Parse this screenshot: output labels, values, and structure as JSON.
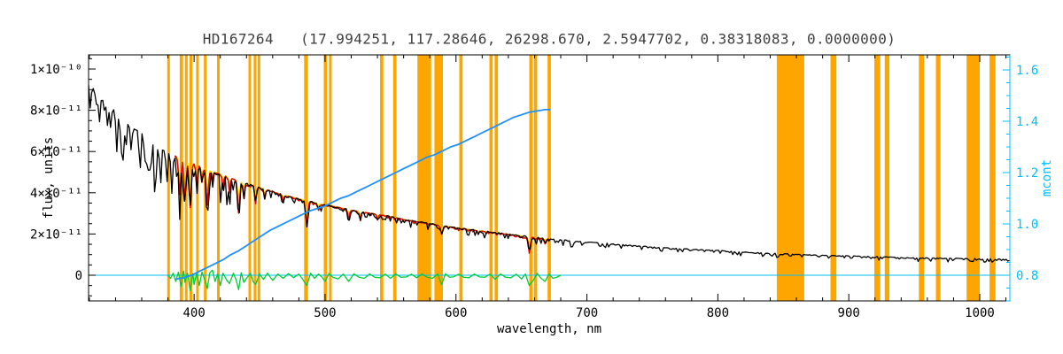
{
  "title": "HD167264   (17.994251, 117.28646, 26298.670, 2.5947702, 0.38318083, 0.0000000)",
  "chart_data": {
    "type": "line",
    "title": "HD167264   (17.994251, 117.28646, 26298.670, 2.5947702, 0.38318083, 0.0000000)",
    "xlabel": "wavelength, nm",
    "ylabel_left": "flux, units",
    "ylabel_right": "mcont",
    "grid": false,
    "legend": "none",
    "x_range": [
      319.4,
      1023
    ],
    "y_left_range": [
      -1.245e-11,
      1.0687e-10
    ],
    "y_right_range": [
      0.7,
      1.6586
    ],
    "x_ticks": [
      400,
      500,
      600,
      700,
      800,
      900,
      1000
    ],
    "x_minor_step": 20,
    "y_left_ticks": [
      {
        "value": 0,
        "label": "0"
      },
      {
        "value": 2e-11,
        "label": "2×10⁻¹¹"
      },
      {
        "value": 4e-11,
        "label": "4×10⁻¹¹"
      },
      {
        "value": 6e-11,
        "label": "6×10⁻¹¹"
      },
      {
        "value": 8e-11,
        "label": "8×10⁻¹¹"
      },
      {
        "value": 1e-10,
        "label": "1×10⁻¹⁰"
      }
    ],
    "y_left_minor_step_e11": 0.5,
    "y_right_ticks": [
      {
        "value": 0.8,
        "label": "0.8"
      },
      {
        "value": 1.0,
        "label": "1.0"
      },
      {
        "value": 1.2,
        "label": "1.2"
      },
      {
        "value": 1.4,
        "label": "1.4"
      },
      {
        "value": 1.6,
        "label": "1.6"
      }
    ],
    "y_right_minor_step": 0.05,
    "colors": {
      "masks": "#FFA500",
      "black_spectrum": "#000000",
      "red_fit": "#E00000",
      "yellow_fit": "#F5D800",
      "green_residuals": "#00CC33",
      "blue_mcont": "#1E90FF",
      "right_axis": "#00BFFF",
      "zero_line": "#00BFFF",
      "frame": "#000000",
      "title_text": "#3F3F3F"
    },
    "series": [
      {
        "name": "black_spectrum",
        "color": "#000000",
        "axis": "left"
      },
      {
        "name": "red_overlay_fit",
        "color": "#E00000",
        "axis": "left"
      },
      {
        "name": "yellow_overlay_fit",
        "color": "#F5D800",
        "axis": "left"
      },
      {
        "name": "green_residuals",
        "color": "#00CC33",
        "axis": "left"
      },
      {
        "name": "blue_mcont",
        "color": "#1E90FF",
        "axis": "right"
      },
      {
        "name": "orange_mask_bands",
        "color": "#FFA500",
        "axis": "x"
      }
    ],
    "zero_line_flux": 0,
    "fit_range_nm": [
      385,
      672
    ],
    "mask_bands_nm": [
      [
        379.5,
        381.5
      ],
      [
        389,
        391.5
      ],
      [
        393,
        395
      ],
      [
        396.5,
        398.5
      ],
      [
        401.5,
        403.5
      ],
      [
        407.5,
        409.5
      ],
      [
        417.5,
        419.5
      ],
      [
        441.5,
        443.5
      ],
      [
        445.5,
        447.5
      ],
      [
        448.5,
        450.5
      ],
      [
        484,
        487
      ],
      [
        499,
        501.5
      ],
      [
        503,
        505
      ],
      [
        542,
        544.5
      ],
      [
        552,
        554.5
      ],
      [
        570.5,
        581
      ],
      [
        583.5,
        590
      ],
      [
        602.5,
        605
      ],
      [
        625.5,
        628
      ],
      [
        629.5,
        632
      ],
      [
        656,
        658.5
      ],
      [
        659.5,
        662
      ],
      [
        670,
        672.5
      ],
      [
        845,
        866
      ],
      [
        886,
        890.5
      ],
      [
        919.5,
        924
      ],
      [
        927.5,
        931
      ],
      [
        953.5,
        957.5
      ],
      [
        966.5,
        970
      ],
      [
        990,
        1000
      ],
      [
        1007.5,
        1012
      ]
    ],
    "continuum_flux_e11": [
      [
        319,
        9.35
      ],
      [
        322,
        9.1
      ],
      [
        325,
        8.9
      ],
      [
        328,
        8.7
      ],
      [
        331,
        8.5
      ],
      [
        334,
        8.3
      ],
      [
        337,
        8.15
      ],
      [
        340,
        8.0
      ],
      [
        344,
        7.8
      ],
      [
        348,
        7.55
      ],
      [
        352,
        7.35
      ],
      [
        356,
        7.15
      ],
      [
        360,
        6.95
      ],
      [
        364,
        6.75
      ],
      [
        368,
        6.55
      ],
      [
        372,
        6.35
      ],
      [
        376,
        6.15
      ],
      [
        380,
        6.0
      ],
      [
        384,
        5.85
      ],
      [
        388,
        5.7
      ],
      [
        392,
        5.6
      ],
      [
        396,
        5.5
      ],
      [
        400,
        5.4
      ],
      [
        405,
        5.27
      ],
      [
        410,
        5.15
      ],
      [
        415,
        5.02
      ],
      [
        420,
        4.9
      ],
      [
        425,
        4.78
      ],
      [
        430,
        4.66
      ],
      [
        435,
        4.55
      ],
      [
        440,
        4.45
      ],
      [
        445,
        4.35
      ],
      [
        450,
        4.25
      ],
      [
        455,
        4.15
      ],
      [
        460,
        4.05
      ],
      [
        465,
        3.95
      ],
      [
        470,
        3.86
      ],
      [
        475,
        3.78
      ],
      [
        480,
        3.7
      ],
      [
        485,
        3.62
      ],
      [
        490,
        3.55
      ],
      [
        495,
        3.47
      ],
      [
        500,
        3.4
      ],
      [
        505,
        3.35
      ],
      [
        510,
        3.3
      ],
      [
        515,
        3.22
      ],
      [
        520,
        3.15
      ],
      [
        525,
        3.1
      ],
      [
        530,
        3.05
      ],
      [
        535,
        3.0
      ],
      [
        540,
        2.95
      ],
      [
        545,
        2.9
      ],
      [
        550,
        2.85
      ],
      [
        555,
        2.78
      ],
      [
        560,
        2.7
      ],
      [
        565,
        2.65
      ],
      [
        570,
        2.6
      ],
      [
        575,
        2.55
      ],
      [
        580,
        2.5
      ],
      [
        585,
        2.45
      ],
      [
        590,
        2.4
      ],
      [
        595,
        2.35
      ],
      [
        600,
        2.3
      ],
      [
        610,
        2.22
      ],
      [
        620,
        2.14
      ],
      [
        630,
        2.06
      ],
      [
        640,
        1.98
      ],
      [
        650,
        1.9
      ],
      [
        660,
        1.83
      ],
      [
        670,
        1.76
      ],
      [
        680,
        1.7
      ],
      [
        690,
        1.65
      ],
      [
        700,
        1.6
      ],
      [
        710,
        1.55
      ],
      [
        720,
        1.5
      ],
      [
        730,
        1.45
      ],
      [
        740,
        1.4
      ],
      [
        750,
        1.36
      ],
      [
        760,
        1.32
      ],
      [
        770,
        1.28
      ],
      [
        780,
        1.25
      ],
      [
        790,
        1.21
      ],
      [
        800,
        1.18
      ],
      [
        810,
        1.14
      ],
      [
        820,
        1.1
      ],
      [
        830,
        1.07
      ],
      [
        840,
        1.05
      ],
      [
        850,
        1.02
      ],
      [
        860,
        1.0
      ],
      [
        870,
        0.97
      ],
      [
        880,
        0.95
      ],
      [
        890,
        0.93
      ],
      [
        900,
        0.92
      ],
      [
        910,
        0.9
      ],
      [
        920,
        0.88
      ],
      [
        930,
        0.86
      ],
      [
        940,
        0.85
      ],
      [
        950,
        0.83
      ],
      [
        960,
        0.82
      ],
      [
        970,
        0.81
      ],
      [
        980,
        0.8
      ],
      [
        990,
        0.79
      ],
      [
        1000,
        0.78
      ],
      [
        1010,
        0.77
      ],
      [
        1023,
        0.75
      ]
    ],
    "absorption_lines": [
      [
        328,
        0.6,
        0.9
      ],
      [
        334,
        0.7,
        0.9
      ],
      [
        341,
        0.8,
        0.9
      ],
      [
        347,
        0.7,
        0.9
      ],
      [
        352,
        0.9,
        0.9
      ],
      [
        358,
        1.0,
        0.9
      ],
      [
        364,
        1.2,
        0.9
      ],
      [
        370,
        1.4,
        0.9
      ],
      [
        374,
        0.9,
        0.9
      ],
      [
        379,
        1.1,
        0.9
      ],
      [
        383,
        1.5,
        1.0
      ],
      [
        389,
        1.9,
        1.1
      ],
      [
        393,
        2.1,
        1.1
      ],
      [
        397,
        2.3,
        1.1
      ],
      [
        402,
        1.0,
        0.9
      ],
      [
        406,
        0.7,
        0.9
      ],
      [
        410,
        1.9,
        1.1
      ],
      [
        414,
        0.5,
        0.8
      ],
      [
        422,
        0.7,
        0.8
      ],
      [
        427,
        0.8,
        0.8
      ],
      [
        434,
        1.7,
        1.1
      ],
      [
        438,
        0.8,
        0.8
      ],
      [
        447,
        0.9,
        0.8
      ],
      [
        454,
        0.5,
        0.8
      ],
      [
        468,
        0.4,
        0.8
      ],
      [
        486,
        1.3,
        1.1
      ],
      [
        495,
        0.3,
        0.8
      ],
      [
        518,
        0.5,
        0.9
      ],
      [
        527,
        0.4,
        0.8
      ],
      [
        540,
        0.25,
        0.8
      ],
      [
        589,
        0.45,
        0.9
      ],
      [
        617,
        0.2,
        0.8
      ],
      [
        656,
        0.8,
        1.0
      ],
      [
        668,
        0.25,
        0.8
      ]
    ],
    "residuals_e11": [
      [
        380,
        0.0
      ],
      [
        382,
        -0.15
      ],
      [
        384,
        0.1
      ],
      [
        386,
        -0.3
      ],
      [
        388,
        0.15
      ],
      [
        390,
        -0.55
      ],
      [
        392,
        0.2
      ],
      [
        393,
        -0.35
      ],
      [
        395,
        0.1
      ],
      [
        397,
        -0.75
      ],
      [
        399,
        0.08
      ],
      [
        400,
        -0.45
      ],
      [
        402,
        0.12
      ],
      [
        404,
        -0.5
      ],
      [
        406,
        0.15
      ],
      [
        408,
        -0.2
      ],
      [
        410,
        -0.65
      ],
      [
        412,
        0.12
      ],
      [
        414,
        0.25
      ],
      [
        416,
        -0.3
      ],
      [
        418,
        0.06
      ],
      [
        420,
        -0.5
      ],
      [
        422,
        0.1
      ],
      [
        425,
        -0.25
      ],
      [
        427,
        -0.4
      ],
      [
        430,
        0.1
      ],
      [
        432,
        -0.2
      ],
      [
        434,
        -0.7
      ],
      [
        436,
        0.12
      ],
      [
        438,
        -0.35
      ],
      [
        440,
        -0.15
      ],
      [
        443,
        0.1
      ],
      [
        445,
        -0.3
      ],
      [
        447,
        -0.45
      ],
      [
        450,
        0.06
      ],
      [
        453,
        -0.2
      ],
      [
        456,
        0.1
      ],
      [
        460,
        -0.25
      ],
      [
        464,
        0.06
      ],
      [
        468,
        -0.15
      ],
      [
        472,
        0.08
      ],
      [
        476,
        -0.12
      ],
      [
        480,
        0.06
      ],
      [
        483,
        -0.2
      ],
      [
        486,
        -0.5
      ],
      [
        489,
        0.1
      ],
      [
        492,
        -0.15
      ],
      [
        495,
        0.06
      ],
      [
        498,
        -0.12
      ],
      [
        500,
        -0.3
      ],
      [
        503,
        0.08
      ],
      [
        506,
        -0.1
      ],
      [
        510,
        -0.18
      ],
      [
        514,
        0.06
      ],
      [
        518,
        -0.3
      ],
      [
        522,
        0.07
      ],
      [
        526,
        -0.1
      ],
      [
        530,
        -0.15
      ],
      [
        534,
        0.06
      ],
      [
        538,
        -0.1
      ],
      [
        542,
        -0.12
      ],
      [
        546,
        0.05
      ],
      [
        550,
        -0.15
      ],
      [
        554,
        0.06
      ],
      [
        558,
        -0.1
      ],
      [
        562,
        -0.08
      ],
      [
        566,
        0.05
      ],
      [
        570,
        -0.12
      ],
      [
        574,
        0.06
      ],
      [
        578,
        -0.1
      ],
      [
        582,
        -0.15
      ],
      [
        586,
        0.06
      ],
      [
        589,
        -0.45
      ],
      [
        592,
        0.07
      ],
      [
        595,
        -0.1
      ],
      [
        598,
        -0.08
      ],
      [
        602,
        0.05
      ],
      [
        606,
        -0.1
      ],
      [
        610,
        -0.12
      ],
      [
        614,
        0.06
      ],
      [
        618,
        -0.08
      ],
      [
        622,
        -0.1
      ],
      [
        626,
        0.05
      ],
      [
        630,
        -0.2
      ],
      [
        634,
        0.06
      ],
      [
        638,
        -0.1
      ],
      [
        642,
        -0.12
      ],
      [
        646,
        0.05
      ],
      [
        650,
        -0.18
      ],
      [
        653,
        0.06
      ],
      [
        656,
        -0.5
      ],
      [
        659,
        -0.25
      ],
      [
        662,
        0.09
      ],
      [
        665,
        -0.15
      ],
      [
        668,
        -0.3
      ],
      [
        671,
        0.06
      ],
      [
        674,
        -0.15
      ],
      [
        677,
        -0.1
      ],
      [
        680,
        0.0
      ]
    ],
    "mcont_curve": [
      [
        386,
        0.785
      ],
      [
        392,
        0.79
      ],
      [
        398,
        0.8
      ],
      [
        404,
        0.815
      ],
      [
        410,
        0.83
      ],
      [
        416,
        0.845
      ],
      [
        422,
        0.86
      ],
      [
        428,
        0.88
      ],
      [
        434,
        0.895
      ],
      [
        440,
        0.915
      ],
      [
        446,
        0.935
      ],
      [
        452,
        0.955
      ],
      [
        458,
        0.975
      ],
      [
        464,
        0.99
      ],
      [
        470,
        1.005
      ],
      [
        476,
        1.02
      ],
      [
        482,
        1.035
      ],
      [
        488,
        1.05
      ],
      [
        494,
        1.06
      ],
      [
        500,
        1.07
      ],
      [
        506,
        1.085
      ],
      [
        512,
        1.1
      ],
      [
        518,
        1.11
      ],
      [
        524,
        1.125
      ],
      [
        530,
        1.14
      ],
      [
        536,
        1.155
      ],
      [
        542,
        1.17
      ],
      [
        548,
        1.185
      ],
      [
        554,
        1.2
      ],
      [
        560,
        1.215
      ],
      [
        566,
        1.23
      ],
      [
        572,
        1.245
      ],
      [
        578,
        1.26
      ],
      [
        584,
        1.27
      ],
      [
        590,
        1.285
      ],
      [
        596,
        1.3
      ],
      [
        602,
        1.31
      ],
      [
        608,
        1.325
      ],
      [
        614,
        1.34
      ],
      [
        620,
        1.355
      ],
      [
        626,
        1.37
      ],
      [
        632,
        1.385
      ],
      [
        638,
        1.4
      ],
      [
        644,
        1.415
      ],
      [
        650,
        1.425
      ],
      [
        656,
        1.435
      ],
      [
        662,
        1.44
      ],
      [
        668,
        1.445
      ],
      [
        672,
        1.445
      ]
    ]
  }
}
